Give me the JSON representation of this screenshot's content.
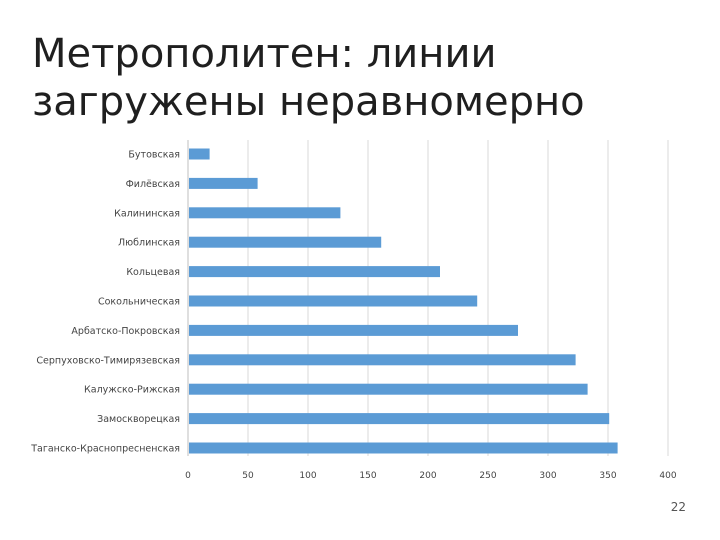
{
  "slide": {
    "title": "Метрополитен: линии загружены неравномерно",
    "page_number": "22"
  },
  "chart_data": {
    "type": "bar",
    "orientation": "horizontal",
    "title": "",
    "xlabel": "",
    "ylabel": "",
    "categories": [
      "Бутовская",
      "Филёвская",
      "Калининская",
      "Люблинская",
      "Кольцевая",
      "Сокольническая",
      "Арбатско-Покровская",
      "Серпуховско-Тимирязевская",
      "Калужско-Рижская",
      "Замоскворецкая",
      "Таганско-Краснопресненская"
    ],
    "values": [
      18,
      58,
      127,
      161,
      210,
      241,
      275,
      323,
      333,
      351,
      358
    ],
    "xlim": [
      0,
      400
    ],
    "ticks": [
      "0",
      "50",
      "100",
      "150",
      "200",
      "250",
      "300",
      "350",
      "400"
    ],
    "tick_values": [
      0,
      50,
      100,
      150,
      200,
      250,
      300,
      350,
      400
    ],
    "grid": "vertical",
    "legend": "none",
    "bar_color": "#5b9bd5",
    "grid_color": "#d9d9d9"
  }
}
